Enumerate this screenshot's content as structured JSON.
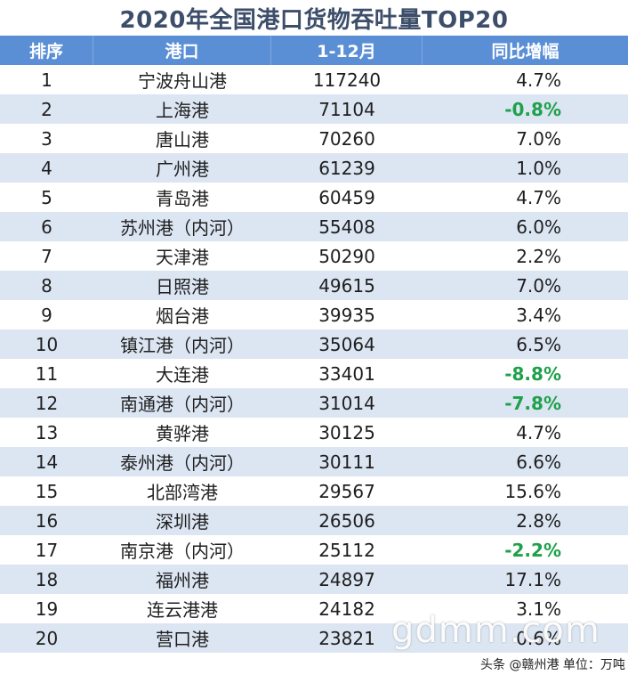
{
  "title": "2020年全国港口货物吞吐量TOP20",
  "header": {
    "rank": "排序",
    "port": "港口",
    "period": "1-12月",
    "growth": "同比增幅"
  },
  "rows": [
    {
      "rank": "1",
      "port": "宁波舟山港",
      "value": "117240",
      "growth": "4.7%",
      "negative": false
    },
    {
      "rank": "2",
      "port": "上海港",
      "value": "71104",
      "growth": "-0.8%",
      "negative": true
    },
    {
      "rank": "3",
      "port": "唐山港",
      "value": "70260",
      "growth": "7.0%",
      "negative": false
    },
    {
      "rank": "4",
      "port": "广州港",
      "value": "61239",
      "growth": "1.0%",
      "negative": false
    },
    {
      "rank": "5",
      "port": "青岛港",
      "value": "60459",
      "growth": "4.7%",
      "negative": false
    },
    {
      "rank": "6",
      "port": "苏州港（内河）",
      "value": "55408",
      "growth": "6.0%",
      "negative": false
    },
    {
      "rank": "7",
      "port": "天津港",
      "value": "50290",
      "growth": "2.2%",
      "negative": false
    },
    {
      "rank": "8",
      "port": "日照港",
      "value": "49615",
      "growth": "7.0%",
      "negative": false
    },
    {
      "rank": "9",
      "port": "烟台港",
      "value": "39935",
      "growth": "3.4%",
      "negative": false
    },
    {
      "rank": "10",
      "port": "镇江港（内河）",
      "value": "35064",
      "growth": "6.5%",
      "negative": false
    },
    {
      "rank": "11",
      "port": "大连港",
      "value": "33401",
      "growth": "-8.8%",
      "negative": true
    },
    {
      "rank": "12",
      "port": "南通港（内河）",
      "value": "31014",
      "growth": "-7.8%",
      "negative": true
    },
    {
      "rank": "13",
      "port": "黄骅港",
      "value": "30125",
      "growth": "4.7%",
      "negative": false
    },
    {
      "rank": "14",
      "port": "泰州港（内河）",
      "value": "30111",
      "growth": "6.6%",
      "negative": false
    },
    {
      "rank": "15",
      "port": "北部湾港",
      "value": "29567",
      "growth": "15.6%",
      "negative": false
    },
    {
      "rank": "16",
      "port": "深圳港",
      "value": "26506",
      "growth": "2.8%",
      "negative": false
    },
    {
      "rank": "17",
      "port": "南京港（内河）",
      "value": "25112",
      "growth": "-2.2%",
      "negative": true
    },
    {
      "rank": "18",
      "port": "福州港",
      "value": "24897",
      "growth": "17.1%",
      "negative": false
    },
    {
      "rank": "19",
      "port": "连云港港",
      "value": "24182",
      "growth": "3.1%",
      "negative": false
    },
    {
      "rank": "20",
      "port": "营口港",
      "value": "23821",
      "growth": "0.6%",
      "negative": false
    }
  ],
  "watermark": "gdmm.com",
  "footer": "头条 @赣州港 单位：万吨",
  "colors": {
    "title": "#3d4e6a",
    "header_bg": "#5a8fd6",
    "alt_row_bg": "#dce6f3",
    "negative": "#1fa14b"
  }
}
